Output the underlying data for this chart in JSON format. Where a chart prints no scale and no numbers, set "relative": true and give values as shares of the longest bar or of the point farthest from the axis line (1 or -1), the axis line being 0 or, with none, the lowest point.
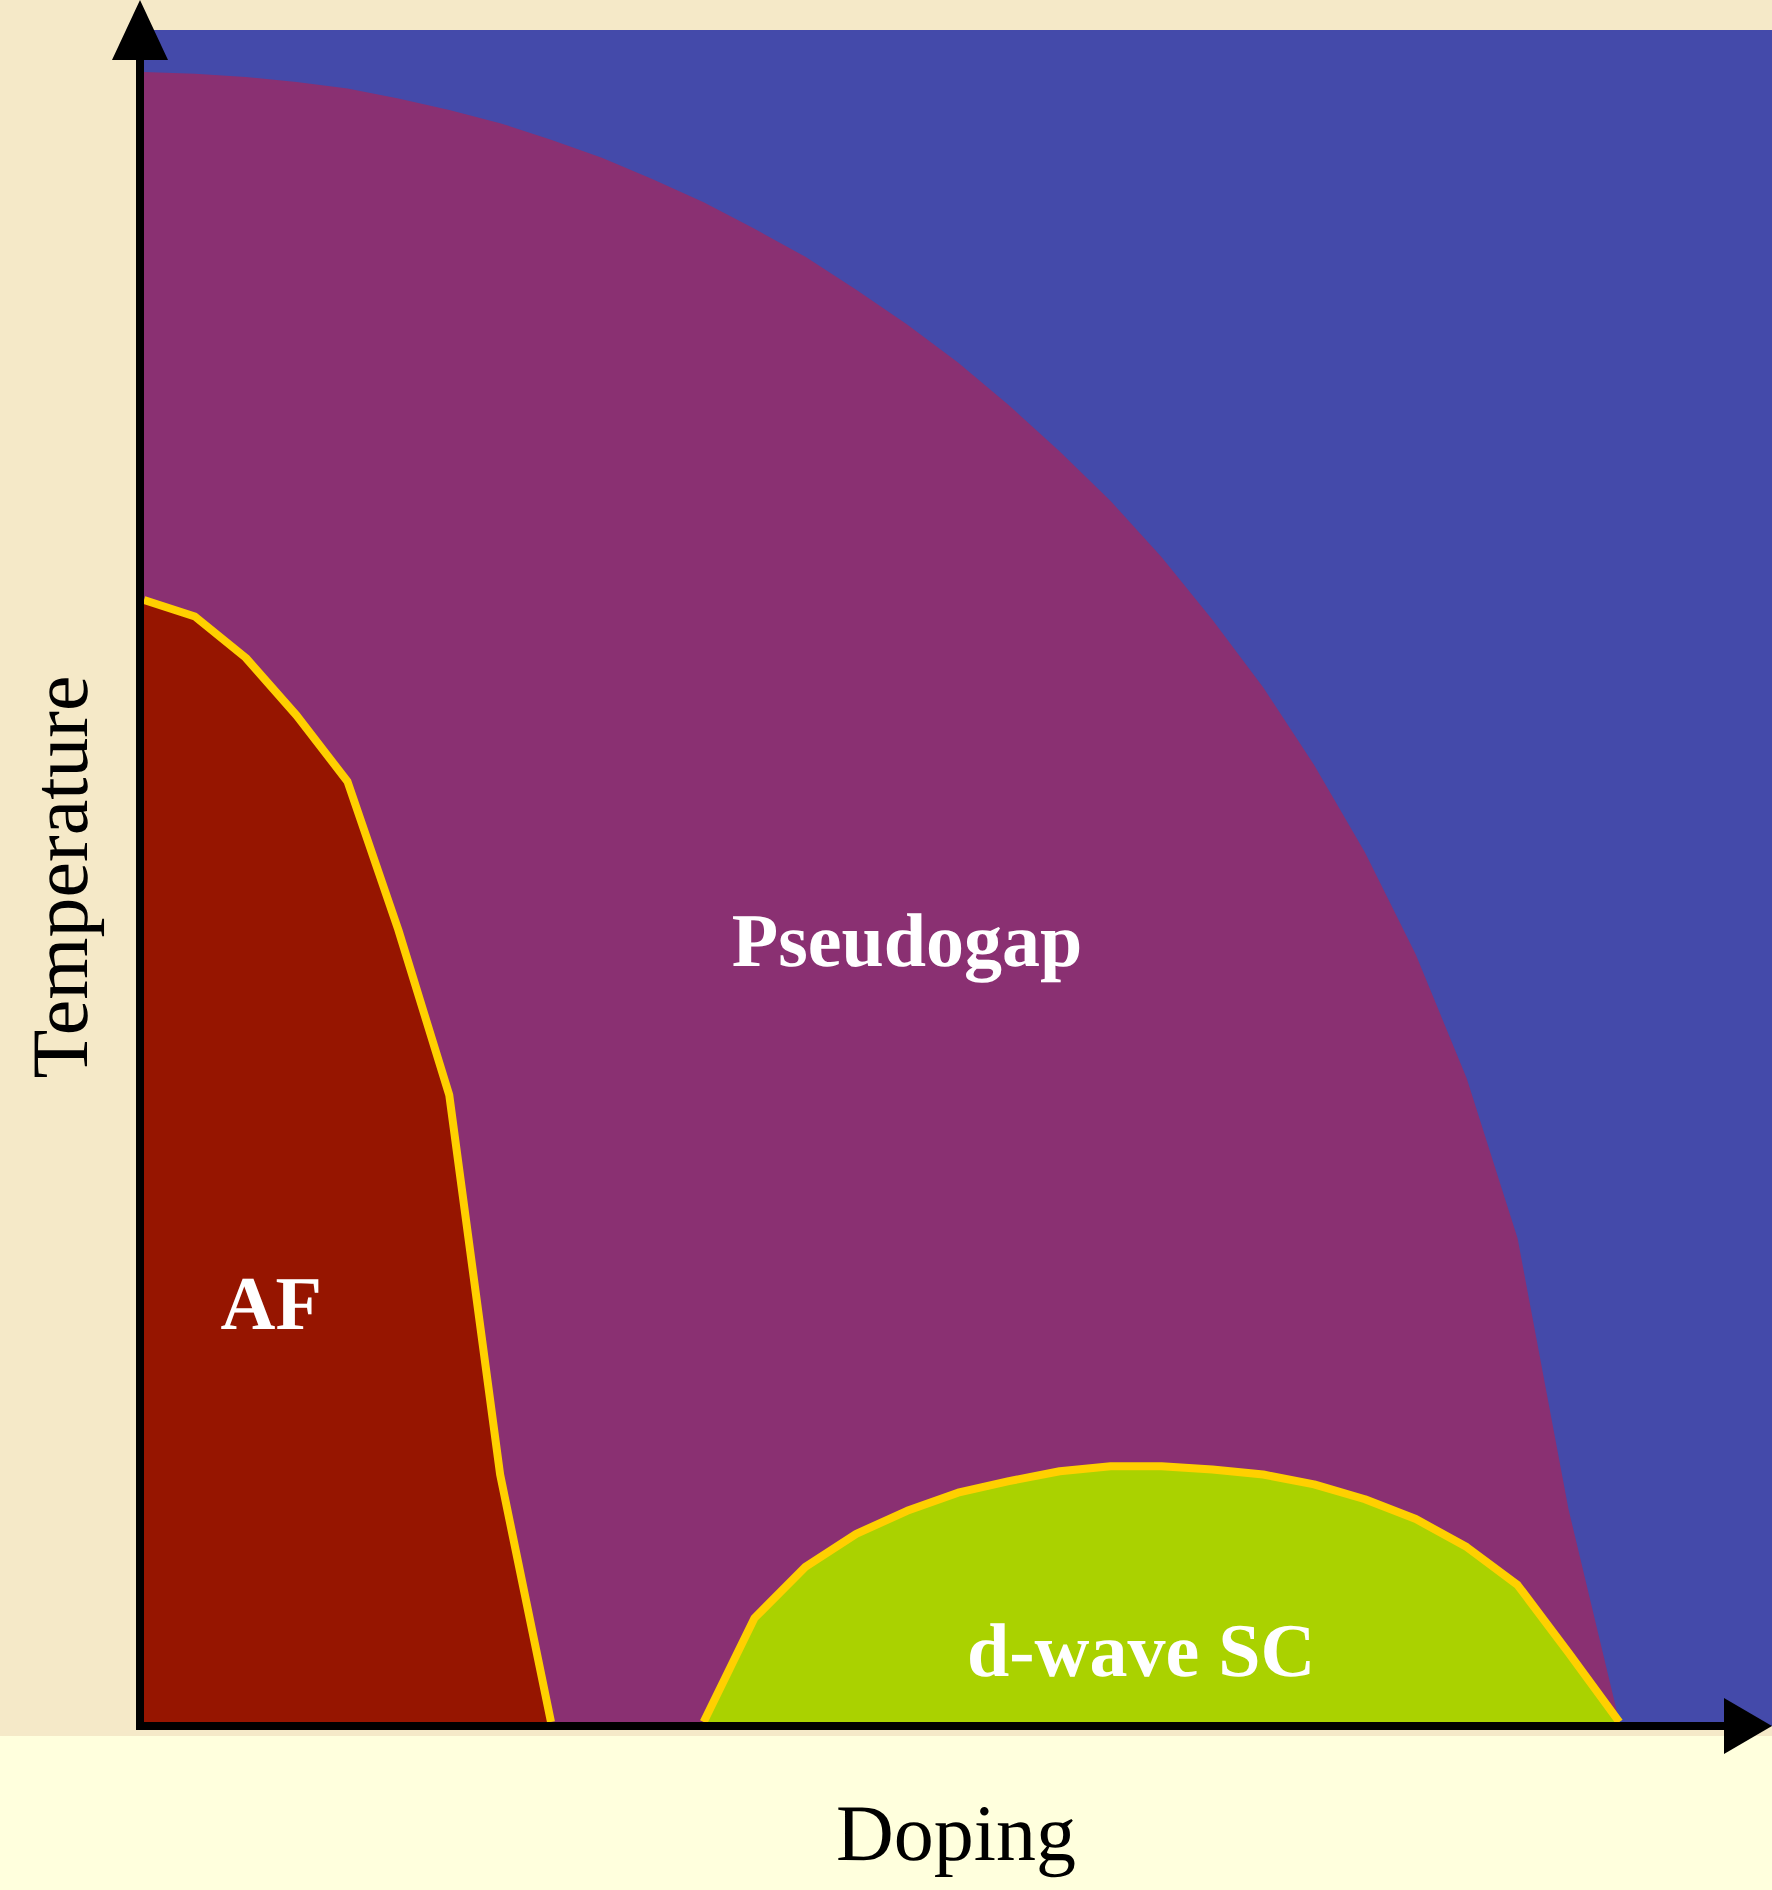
{
  "chart_data": {
    "type": "area",
    "relative": true,
    "xlabel": "Doping",
    "ylabel": "Temperature",
    "legend": false,
    "categories": [
      null,
      null,
      null,
      null,
      null,
      null,
      null,
      null,
      null,
      null,
      null,
      null,
      null,
      null,
      null,
      null,
      null,
      null,
      null,
      null,
      null,
      null,
      null,
      null,
      null,
      null,
      null,
      null,
      null,
      null,
      null,
      null,
      null
    ],
    "series": [
      {
        "name": "Pseudogap",
        "color": "#8a3072",
        "values": [
          1,
          0.999,
          0.997,
          0.994,
          0.99,
          0.984,
          0.977,
          0.969,
          0.959,
          0.948,
          0.935,
          0.921,
          0.905,
          0.888,
          0.868,
          0.847,
          0.824,
          0.798,
          0.77,
          0.74,
          0.706,
          0.668,
          0.627,
          0.58,
          0.527,
          0.465,
          0.39,
          0.293,
          0.129,
          0,
          null,
          null,
          null
        ]
      },
      {
        "name": "AF",
        "color": "#961500",
        "values": [
          0.68,
          0.67,
          0.645,
          0.61,
          0.57,
          0.48,
          0.38,
          0.15,
          0,
          null,
          null,
          null,
          null,
          null,
          null,
          null,
          null,
          null,
          null,
          null,
          null,
          null,
          null,
          null,
          null,
          null,
          null,
          null,
          null,
          null,
          null,
          null,
          null
        ]
      },
      {
        "name": "d-wave SC",
        "color": "#aad200",
        "values": [
          null,
          null,
          null,
          null,
          null,
          null,
          null,
          null,
          null,
          null,
          null,
          0,
          0.063,
          0.094,
          0.114,
          0.128,
          0.139,
          0.146,
          0.152,
          0.155,
          0.155,
          0.153,
          0.15,
          0.144,
          0.135,
          0.123,
          0.106,
          0.083,
          0.042,
          0,
          null,
          null,
          null
        ]
      }
    ]
  }
}
